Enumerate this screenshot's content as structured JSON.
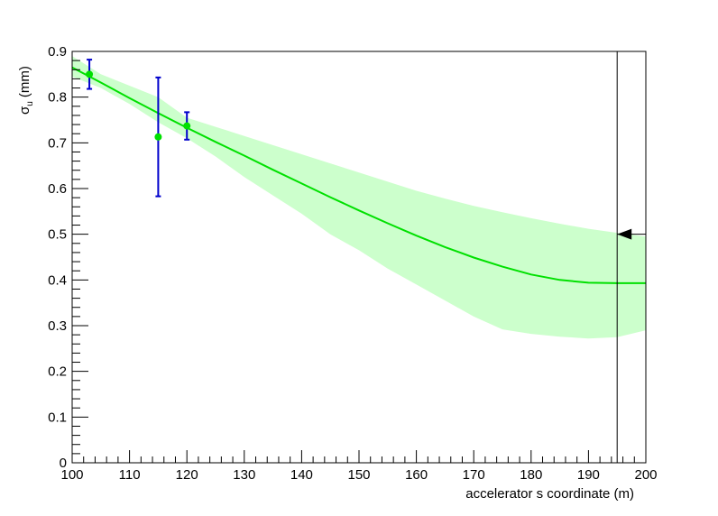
{
  "chart_data": {
    "type": "line",
    "xlabel": "accelerator s coordinate (m)",
    "ylabel": {
      "symbol": "σ",
      "subscript": "u",
      "unit": "(mm)"
    },
    "xlim": [
      100,
      200
    ],
    "ylim": [
      0,
      0.9
    ],
    "x_ticks": [
      100,
      110,
      120,
      130,
      140,
      150,
      160,
      170,
      180,
      190,
      200
    ],
    "y_ticks": [
      0,
      0.1,
      0.2,
      0.3,
      0.4,
      0.5,
      0.6,
      0.7,
      0.8,
      0.9
    ],
    "grid": false,
    "series": [
      {
        "kind": "fit-curve",
        "color": "#00e000",
        "x": [
          100,
          105,
          110,
          115,
          120,
          125,
          130,
          135,
          140,
          145,
          150,
          155,
          160,
          165,
          170,
          175,
          180,
          185,
          190,
          195,
          200
        ],
        "y": [
          0.865,
          0.832,
          0.798,
          0.765,
          0.733,
          0.702,
          0.672,
          0.641,
          0.611,
          0.581,
          0.552,
          0.524,
          0.497,
          0.472,
          0.449,
          0.429,
          0.412,
          0.4,
          0.394,
          0.393,
          0.393
        ]
      },
      {
        "kind": "confidence-band",
        "color": "#ccffcc",
        "x": [
          100,
          105,
          110,
          115,
          120,
          125,
          130,
          135,
          140,
          145,
          150,
          155,
          160,
          165,
          170,
          175,
          180,
          185,
          190,
          195,
          200
        ],
        "upper": [
          0.89,
          0.85,
          0.825,
          0.8,
          0.755,
          0.735,
          0.715,
          0.695,
          0.675,
          0.655,
          0.635,
          0.615,
          0.595,
          0.578,
          0.562,
          0.548,
          0.535,
          0.523,
          0.512,
          0.503,
          0.495
        ],
        "lower": [
          0.845,
          0.82,
          0.785,
          0.745,
          0.71,
          0.67,
          0.625,
          0.585,
          0.545,
          0.5,
          0.465,
          0.425,
          0.39,
          0.355,
          0.32,
          0.292,
          0.282,
          0.276,
          0.272,
          0.275,
          0.29
        ]
      },
      {
        "kind": "measurements",
        "marker_color": "#00e000",
        "errorbar_color": "#0000cc",
        "points": [
          {
            "x": 103,
            "y": 0.85,
            "err": 0.032
          },
          {
            "x": 115,
            "y": 0.713,
            "err": 0.13
          },
          {
            "x": 120,
            "y": 0.737,
            "err": 0.03
          }
        ]
      }
    ],
    "annotations": [
      {
        "kind": "vertical-line",
        "x": 195,
        "color": "#000000"
      },
      {
        "kind": "arrow-marker",
        "x": 195,
        "y": 0.5,
        "direction": "left",
        "color": "#000000"
      }
    ]
  }
}
